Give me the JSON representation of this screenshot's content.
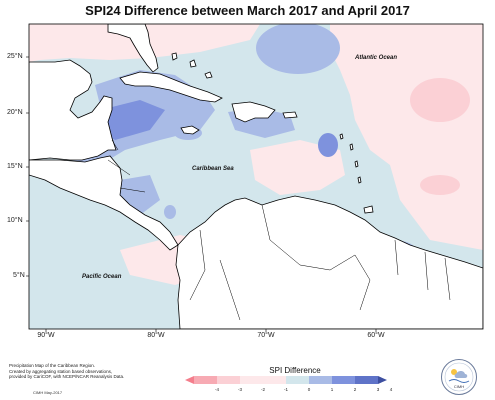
{
  "title": "SPI24 Difference between March 2017 and April 2017",
  "map": {
    "lat_labels": [
      "25°N",
      "20°N",
      "15°N",
      "10°N",
      "5°N"
    ],
    "lon_labels": [
      "90°W",
      "80°W",
      "70°W",
      "60°W"
    ],
    "places": {
      "atlantic": "Atlantic Ocean",
      "caribbean": "Caribbean Sea",
      "pacific": "Pacific Ocean"
    }
  },
  "legend": {
    "title": "SPI Difference",
    "ticks": [
      "-4",
      "-3",
      "-2",
      "-1",
      "0",
      "1",
      "2",
      "3",
      "4"
    ],
    "colors": [
      "#f47e8c",
      "#f7aab3",
      "#fbd0d5",
      "#fde8ea",
      "#d3e6ec",
      "#a9bbe6",
      "#7e92dd",
      "#5f73c8",
      "#3d4fa0"
    ]
  },
  "note": {
    "lines": [
      "Precipitation Map of the Caribbean Region.",
      "Created by aggregating station based observations,",
      "provided by CariCOF, with NCEP/NCAR Reanalysis Data."
    ],
    "date": "CIMH May-2017"
  },
  "logo_text": "CIMH"
}
